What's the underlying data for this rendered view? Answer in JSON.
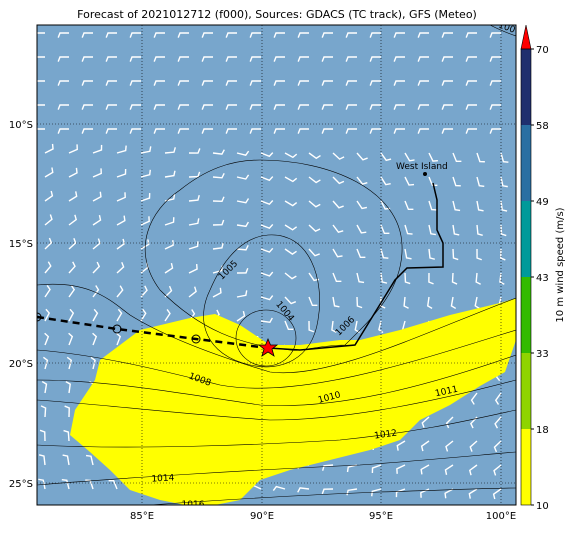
{
  "title": "Forecast of 2021012712 (f000), Sources: GDACS (TC track), GFS (Meteo)",
  "map": {
    "lat_labels": [
      "10°S",
      "15°S",
      "20°S",
      "25°S"
    ],
    "lon_labels": [
      "85°E",
      "90°E",
      "95°E",
      "100°E"
    ],
    "place": "West Island",
    "isobar_labels": [
      "100",
      "1005",
      "1004",
      "1006",
      "1008",
      "1010",
      "1011",
      "1012",
      "1014",
      "1016"
    ]
  },
  "colorbar": {
    "label": "10 m wind speed (m/s)",
    "ticks": [
      10,
      18,
      33,
      43,
      49,
      58,
      70
    ],
    "colors": [
      "#ffff00",
      "#8fd400",
      "#33bb00",
      "#009a9a",
      "#2a6fa2",
      "#1f2f6e"
    ],
    "extend_color": "#ff0000"
  }
}
